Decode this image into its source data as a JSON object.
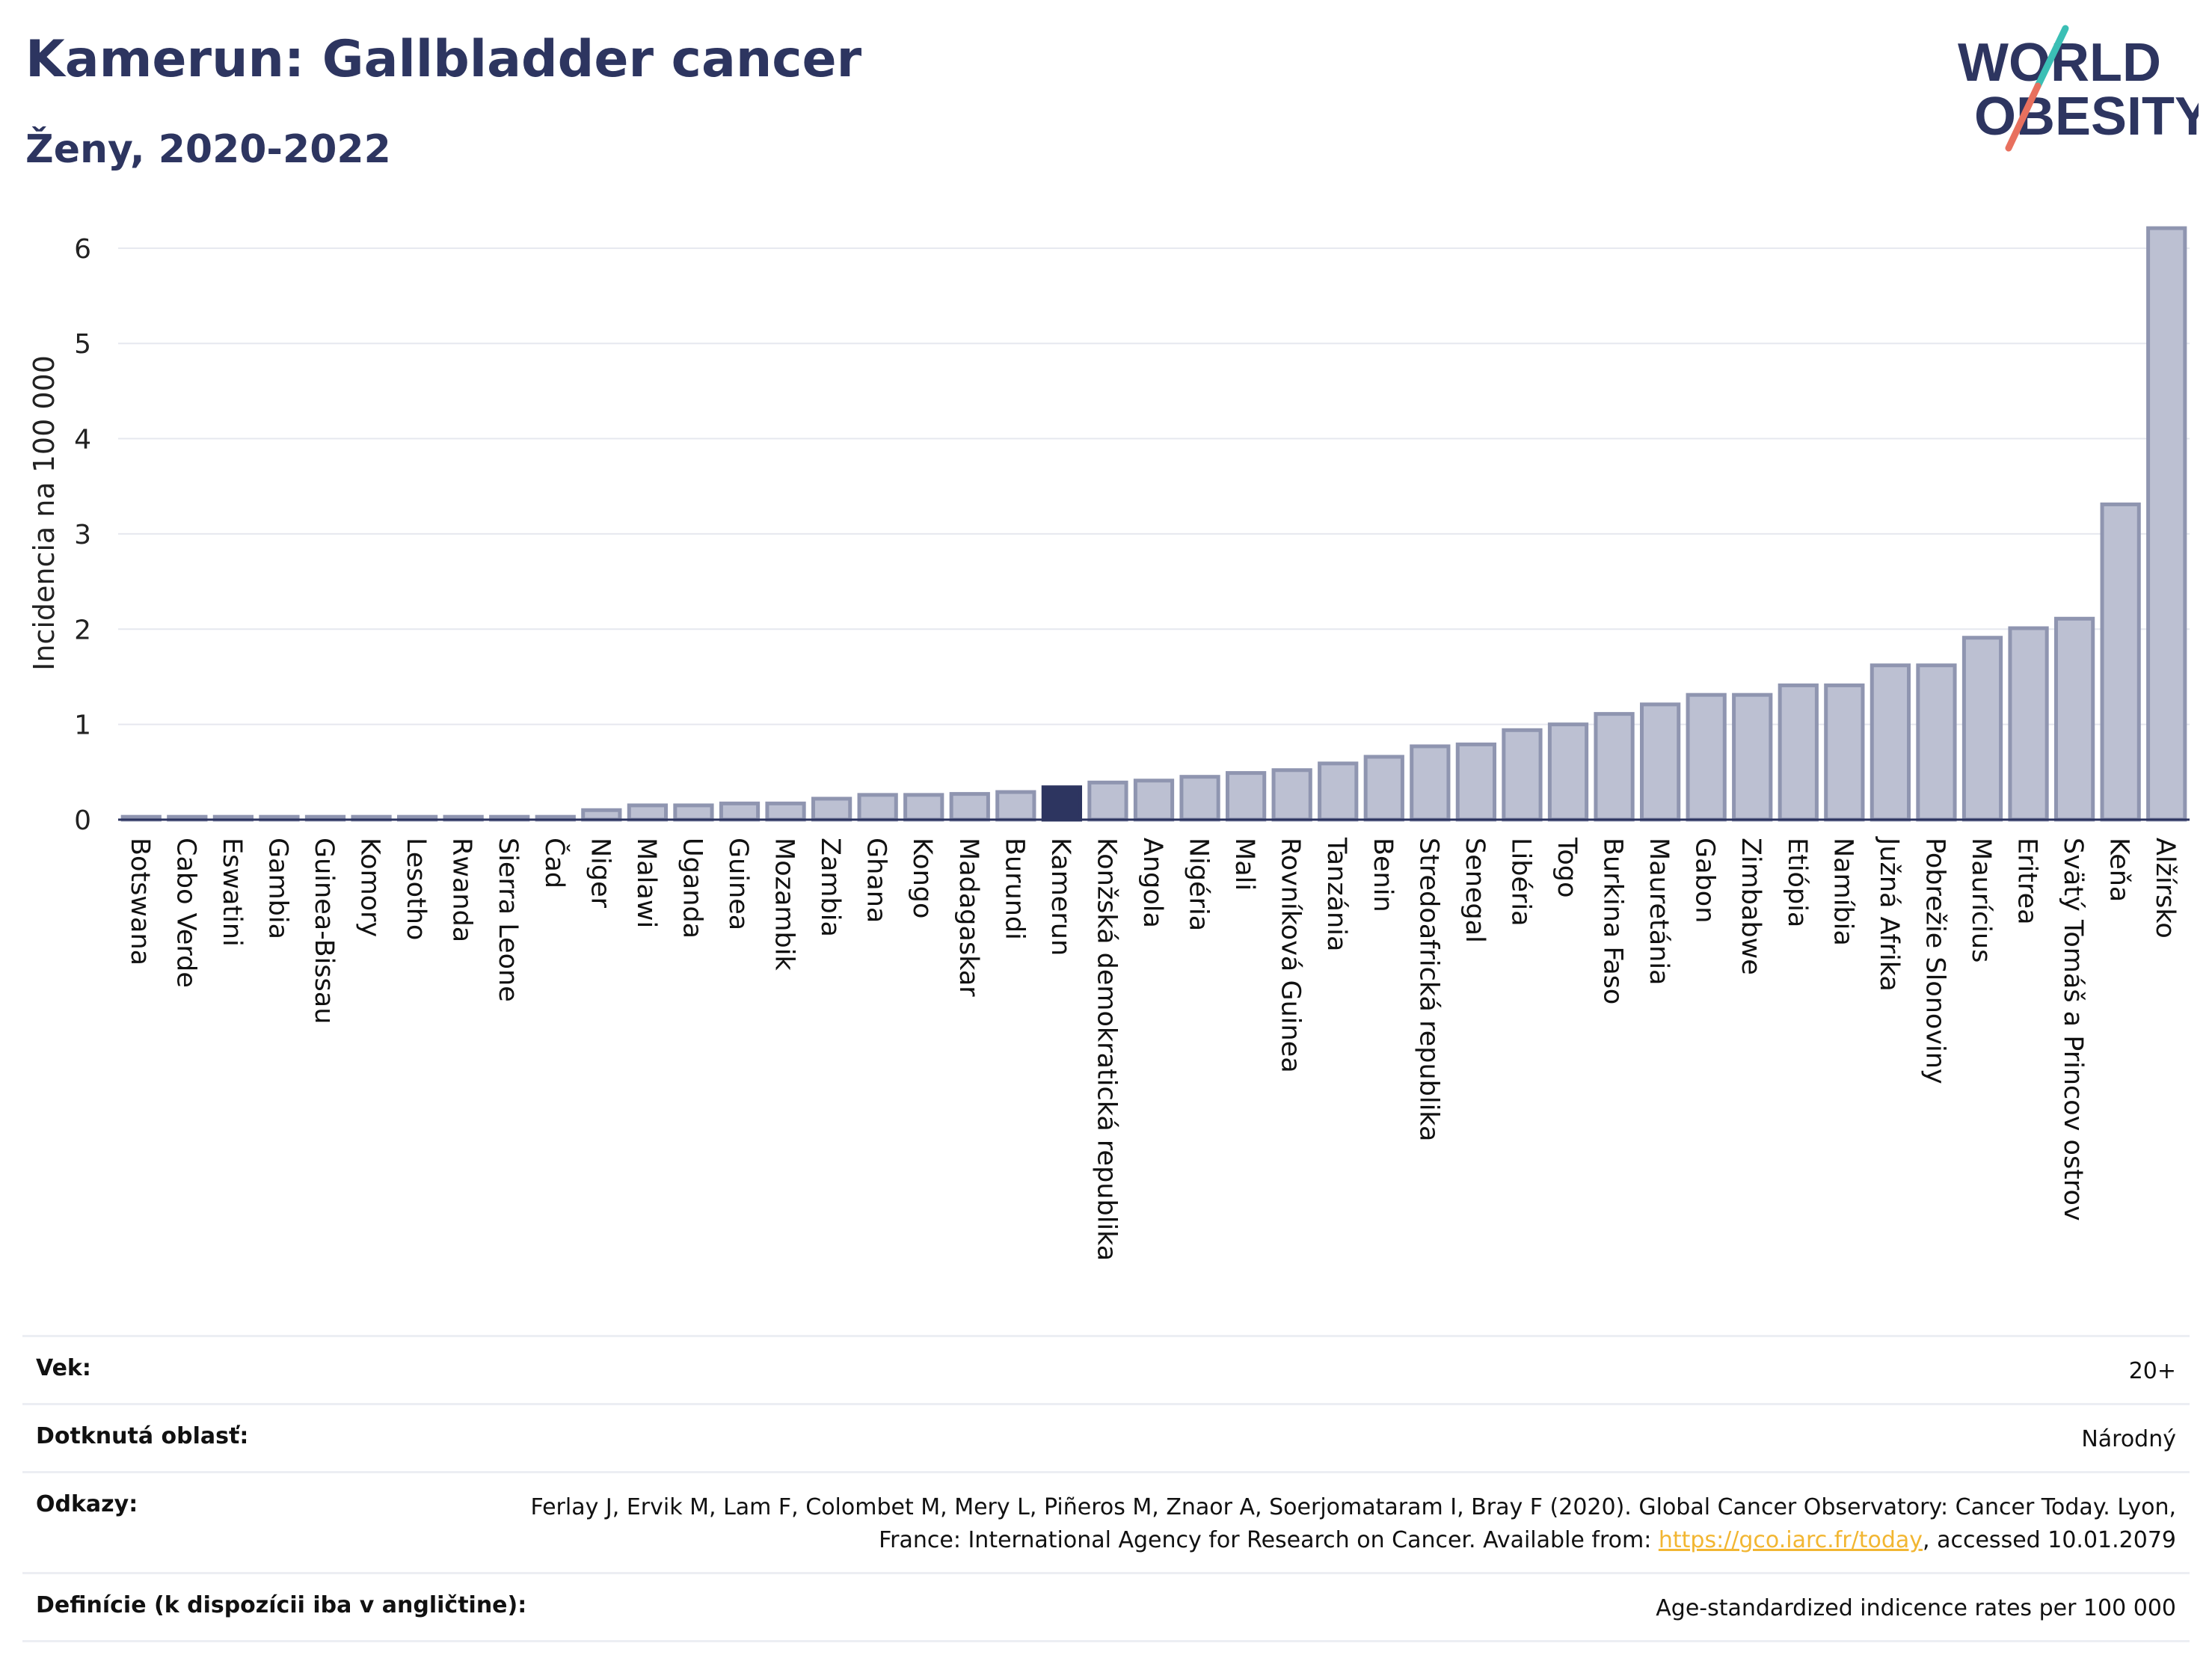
{
  "header": {
    "title": "Kamerun: Gallbladder cancer",
    "subtitle": "Ženy, 2020-2022"
  },
  "logo": {
    "line1": "WORLD",
    "line2": "OBESITY",
    "colors": {
      "text": "#2d3560",
      "slash_top": "#3bbfb5",
      "slash_bottom": "#e8705e"
    }
  },
  "colors": {
    "bar_fill": "#bcc0d2",
    "bar_stroke": "#8f95b0",
    "highlight": "#2d3560",
    "grid": "#e6e8ef",
    "axis": "#2d3560"
  },
  "chart_data": {
    "type": "bar",
    "ylabel": "Incidencia na 100 000",
    "ylim": [
      0,
      6.25
    ],
    "yticks": [
      0,
      1,
      2,
      3,
      4,
      5,
      6
    ],
    "grid": true,
    "highlight": "Kamerun",
    "categories": [
      "Botswana",
      "Cabo Verde",
      "Eswatini",
      "Gambia",
      "Guinea-Bissau",
      "Komory",
      "Lesotho",
      "Rwanda",
      "Sierra Leone",
      "Čad",
      "Niger",
      "Malawi",
      "Uganda",
      "Guinea",
      "Mozambik",
      "Zambia",
      "Ghana",
      "Kongo",
      "Madagaskar",
      "Burundi",
      "Kamerun",
      "Konžská demokratická republika",
      "Angola",
      "Nigéria",
      "Mali",
      "Rovníková Guinea",
      "Tanzánia",
      "Benin",
      "Stredoafrická republika",
      "Senegal",
      "Libéria",
      "Togo",
      "Burkina Faso",
      "Mauretánia",
      "Gabon",
      "Zimbabwe",
      "Etiópia",
      "Namíbia",
      "Južná Afrika",
      "Pobrežie Slonoviny",
      "Maurícius",
      "Eritrea",
      "Svätý Tomáš a Princov ostrov",
      "Keňa",
      "Alžírsko"
    ],
    "values": [
      0.03,
      0.03,
      0.03,
      0.03,
      0.03,
      0.03,
      0.03,
      0.03,
      0.03,
      0.03,
      0.1,
      0.15,
      0.15,
      0.17,
      0.17,
      0.22,
      0.26,
      0.26,
      0.27,
      0.29,
      0.34,
      0.39,
      0.41,
      0.45,
      0.49,
      0.52,
      0.59,
      0.66,
      0.77,
      0.79,
      0.94,
      1.0,
      1.11,
      1.21,
      1.31,
      1.31,
      1.41,
      1.41,
      1.62,
      1.62,
      1.91,
      2.01,
      2.11,
      3.31,
      6.21
    ]
  },
  "info": {
    "rows": [
      {
        "label": "Vek:",
        "value": "20+"
      },
      {
        "label": "Dotknutá oblasť:",
        "value": "Národný"
      },
      {
        "label": "Odkazy:",
        "value_pre": "Ferlay J, Ervik M, Lam F, Colombet M, Mery L, Piñeros M, Znaor A, Soerjomataram I, Bray F (2020). Global Cancer Observatory: Cancer Today. Lyon, France: International Agency for Research on Cancer. Available from: ",
        "link": "https://gco.iarc.fr/today",
        "value_post": ", accessed 10.01.2079"
      },
      {
        "label": "Definície (k dispozícii iba v angličtine):",
        "value": "Age-standardized indicence rates per 100 000"
      }
    ]
  }
}
